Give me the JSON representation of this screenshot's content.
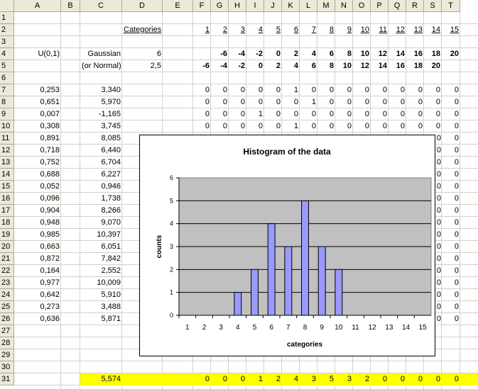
{
  "columns": [
    "A",
    "B",
    "C",
    "D",
    "E",
    "F",
    "G",
    "H",
    "I",
    "J",
    "K",
    "L",
    "M",
    "N",
    "O",
    "P",
    "Q",
    "R",
    "S",
    "T"
  ],
  "rows": [
    "1",
    "2",
    "3",
    "4",
    "5",
    "6",
    "7",
    "8",
    "9",
    "10",
    "11",
    "12",
    "13",
    "14",
    "15",
    "16",
    "17",
    "18",
    "19",
    "20",
    "21",
    "22",
    "23",
    "24",
    "25",
    "26",
    "27",
    "28",
    "29",
    "30",
    "31"
  ],
  "labels": {
    "categories": "Categories",
    "u01": "U(0,1)",
    "gaussian": "Gaussian",
    "or_normal": "(or Normal)",
    "d4": "6",
    "d5": "2,5"
  },
  "row2_categories": [
    "1",
    "2",
    "3",
    "4",
    "5",
    "6",
    "7",
    "8",
    "9",
    "10",
    "11",
    "12",
    "13",
    "14",
    "15"
  ],
  "row4_values": [
    "-6",
    "-4",
    "-2",
    "0",
    "2",
    "4",
    "6",
    "8",
    "10",
    "12",
    "14",
    "16",
    "18",
    "20"
  ],
  "row5_values": [
    "-6",
    "-4",
    "-2",
    "0",
    "2",
    "4",
    "6",
    "8",
    "10",
    "12",
    "14",
    "16",
    "18",
    "20"
  ],
  "col_a": [
    "0,253",
    "0,651",
    "0,007",
    "0,308",
    "0,891",
    "0,718",
    "0,752",
    "0,688",
    "0,052",
    "0,096",
    "0,904",
    "0,948",
    "0,985",
    "0,663",
    "0,872",
    "0,164",
    "0,977",
    "0,642",
    "0,273",
    "0,636"
  ],
  "col_c": [
    "3,340",
    "5,970",
    "-1,165",
    "3,745",
    "8,085",
    "6,440",
    "6,704",
    "6,227",
    "0,946",
    "1,738",
    "8,266",
    "9,070",
    "10,397",
    "6,051",
    "7,842",
    "2,552",
    "10,009",
    "5,910",
    "3,488",
    "5,871"
  ],
  "grid_rows_7_10": [
    [
      "0",
      "0",
      "0",
      "0",
      "0",
      "1",
      "0",
      "0",
      "0",
      "0",
      "0",
      "0",
      "0",
      "0",
      "0"
    ],
    [
      "0",
      "0",
      "0",
      "0",
      "0",
      "0",
      "1",
      "0",
      "0",
      "0",
      "0",
      "0",
      "0",
      "0",
      "0"
    ],
    [
      "0",
      "0",
      "0",
      "1",
      "0",
      "0",
      "0",
      "0",
      "0",
      "0",
      "0",
      "0",
      "0",
      "0",
      "0"
    ],
    [
      "0",
      "0",
      "0",
      "0",
      "0",
      "1",
      "0",
      "0",
      "0",
      "0",
      "0",
      "0",
      "0",
      "0",
      "0"
    ]
  ],
  "col_t_rows_11_26": [
    "0",
    "0",
    "0",
    "0",
    "0",
    "0",
    "0",
    "0",
    "0",
    "0",
    "0",
    "0",
    "0",
    "0",
    "0",
    "0"
  ],
  "col_s_partial": [
    "0",
    "0",
    "0",
    "0",
    "0",
    "0",
    "0",
    "0",
    "0",
    "0",
    "0",
    "0",
    "0",
    "0",
    "0",
    "0"
  ],
  "row31": {
    "c31": "5,574",
    "counts": [
      "0",
      "0",
      "0",
      "1",
      "2",
      "4",
      "3",
      "5",
      "3",
      "2",
      "0",
      "0",
      "0",
      "0",
      "0"
    ]
  },
  "chart_data": {
    "type": "bar",
    "title": "Histogram of the data",
    "xlabel": "categories",
    "ylabel": "counts",
    "categories": [
      "1",
      "2",
      "3",
      "4",
      "5",
      "6",
      "7",
      "8",
      "9",
      "10",
      "11",
      "12",
      "13",
      "14",
      "15"
    ],
    "values": [
      0,
      0,
      0,
      1,
      2,
      4,
      3,
      5,
      3,
      2,
      0,
      0,
      0,
      0,
      0
    ],
    "ylim": [
      0,
      6
    ],
    "yticks": [
      "0",
      "1",
      "2",
      "3",
      "4",
      "5",
      "6"
    ],
    "plot_color": "#c0c0c0",
    "bar_color": "#9999ff",
    "grid": true
  }
}
